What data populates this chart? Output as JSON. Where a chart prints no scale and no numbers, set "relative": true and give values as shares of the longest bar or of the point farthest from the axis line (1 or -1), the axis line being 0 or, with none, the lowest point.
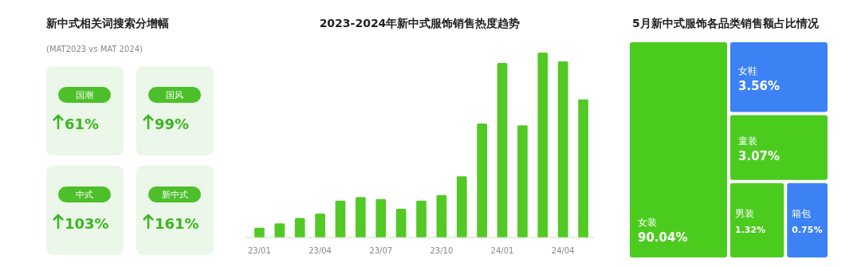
{
  "chart_data": [
    {
      "type": "other",
      "title": "新中式相关词搜索分增幅",
      "subtitle": "(MAT2023 vs MAT 2024)",
      "categories": [
        "国潮",
        "国风",
        "中式",
        "新中式"
      ],
      "values": [
        61,
        99,
        103,
        161
      ],
      "value_labels": [
        "61%",
        "99%",
        "103%",
        "161%"
      ],
      "color": "#3cb521"
    },
    {
      "type": "bar",
      "title": "2023-2024年新中式服饰销售热度趋势",
      "relative": true,
      "categories": [
        "23/01",
        null,
        null,
        "23/04",
        null,
        null,
        "23/07",
        null,
        null,
        "23/10",
        null,
        null,
        "24/01",
        null,
        null,
        "24/04",
        null
      ],
      "values": [
        0.053,
        0.077,
        0.106,
        0.129,
        0.199,
        0.219,
        0.208,
        0.155,
        0.199,
        0.23,
        0.331,
        0.616,
        0.944,
        0.607,
        1,
        0.953,
        0.747
      ],
      "color": "#52c925"
    },
    {
      "type": "other",
      "title": "5月新中式服饰各品类销售额占比情况",
      "categories": [
        "女装",
        "女鞋",
        "童装",
        "男装",
        "箱包"
      ],
      "values": [
        90.04,
        3.56,
        3.07,
        1.32,
        0.75
      ],
      "value_labels": [
        "90.04%",
        "3.56%",
        "3.07%",
        "1.32%",
        "0.75%"
      ],
      "colors": [
        "#4ccb1f",
        "#3d82f5",
        "#4ccb1f",
        "#4ccb1f",
        "#3d82f5"
      ]
    }
  ]
}
